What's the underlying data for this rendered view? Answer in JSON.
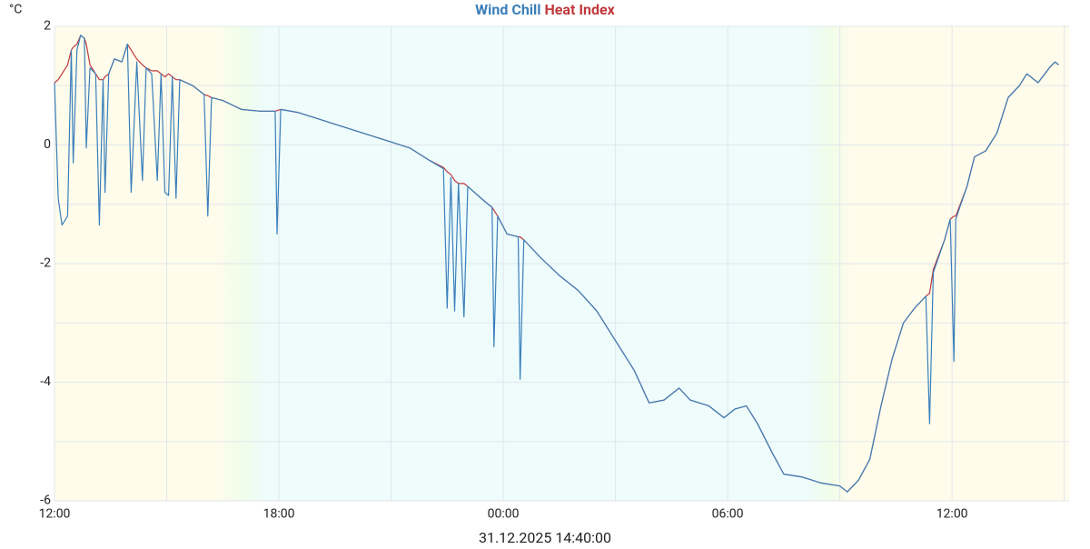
{
  "chart_data": {
    "type": "line",
    "ylabel": "°C",
    "xlabel": "31.12.2025 14:40:00",
    "x": [
      12.0,
      12.1,
      12.2,
      12.35,
      12.45,
      12.5,
      12.6,
      12.7,
      12.8,
      12.85,
      12.95,
      13.1,
      13.2,
      13.3,
      13.35,
      13.45,
      13.6,
      13.8,
      13.95,
      14.05,
      14.2,
      14.35,
      14.45,
      14.6,
      14.75,
      14.85,
      14.95,
      15.05,
      15.15,
      15.25,
      15.35,
      15.7,
      16.0,
      16.1,
      16.2,
      16.5,
      17.0,
      17.5,
      17.9,
      17.95,
      18.05,
      18.5,
      19.0,
      19.5,
      20.0,
      20.5,
      21.0,
      21.5,
      22.0,
      22.4,
      22.5,
      22.6,
      22.7,
      22.8,
      22.95,
      23.05,
      23.5,
      23.7,
      23.75,
      23.85,
      24.1,
      24.4,
      24.45,
      24.55,
      25.0,
      25.5,
      26.0,
      26.5,
      27.0,
      27.5,
      27.9,
      28.3,
      28.7,
      29.0,
      29.5,
      29.9,
      30.2,
      30.5,
      30.8,
      31.2,
      31.5,
      32.0,
      32.5,
      33.0,
      33.2,
      33.5,
      33.8,
      34.1,
      34.4,
      34.7,
      35.0,
      35.3,
      35.4,
      35.5,
      35.8,
      35.95,
      36.05,
      36.1,
      36.4,
      36.6,
      36.9,
      37.2,
      37.5,
      37.8,
      38.0,
      38.3,
      38.6,
      38.75,
      38.85
    ],
    "series": [
      {
        "name": "Heat Index",
        "color": "#c0393b",
        "values": [
          1.05,
          1.1,
          1.2,
          1.35,
          1.6,
          1.65,
          1.7,
          1.85,
          1.8,
          1.7,
          1.35,
          1.2,
          1.1,
          1.1,
          1.15,
          1.2,
          1.45,
          1.4,
          1.7,
          1.6,
          1.45,
          1.35,
          1.3,
          1.25,
          1.25,
          1.2,
          1.15,
          1.2,
          1.15,
          1.1,
          1.1,
          1.0,
          0.85,
          0.83,
          0.8,
          0.75,
          0.6,
          0.57,
          0.57,
          0.58,
          0.6,
          0.55,
          0.45,
          0.35,
          0.25,
          0.15,
          0.05,
          -0.05,
          -0.25,
          -0.38,
          -0.45,
          -0.5,
          -0.6,
          -0.65,
          -0.65,
          -0.7,
          -0.95,
          -1.05,
          -1.1,
          -1.2,
          -1.5,
          -1.55,
          -1.55,
          -1.6,
          -1.9,
          -2.2,
          -2.45,
          -2.8,
          -3.3,
          -3.8,
          -4.35,
          -4.3,
          -4.1,
          -4.3,
          -4.4,
          -4.6,
          -4.45,
          -4.4,
          -4.7,
          -5.2,
          -5.55,
          -5.6,
          -5.7,
          -5.75,
          -5.85,
          -5.65,
          -5.3,
          -4.4,
          -3.6,
          -3.0,
          -2.75,
          -2.55,
          -2.5,
          -2.1,
          -1.6,
          -1.25,
          -1.2,
          -1.2,
          -0.7,
          -0.2,
          -0.1,
          0.2,
          0.8,
          1.0,
          1.2,
          1.05,
          1.3,
          1.4,
          1.35
        ]
      },
      {
        "name": "Wind Chill",
        "color": "#3a7fba",
        "values": [
          1.05,
          -0.9,
          -1.35,
          -1.2,
          1.6,
          -0.3,
          1.6,
          1.85,
          1.8,
          -0.05,
          1.3,
          1.2,
          -1.35,
          1.1,
          -0.8,
          1.2,
          1.45,
          1.4,
          1.7,
          -0.8,
          1.4,
          -0.6,
          1.3,
          1.2,
          -0.6,
          1.2,
          -0.8,
          -0.85,
          1.15,
          -0.9,
          1.1,
          1.0,
          0.85,
          -1.2,
          0.8,
          0.75,
          0.6,
          0.57,
          0.57,
          -1.5,
          0.6,
          0.55,
          0.45,
          0.35,
          0.25,
          0.15,
          0.05,
          -0.05,
          -0.25,
          -0.4,
          -2.75,
          -0.55,
          -2.8,
          -0.65,
          -2.9,
          -0.7,
          -0.95,
          -1.05,
          -3.4,
          -1.2,
          -1.5,
          -1.55,
          -3.95,
          -1.6,
          -1.9,
          -2.2,
          -2.45,
          -2.8,
          -3.3,
          -3.8,
          -4.35,
          -4.3,
          -4.1,
          -4.3,
          -4.4,
          -4.6,
          -4.45,
          -4.4,
          -4.7,
          -5.2,
          -5.55,
          -5.6,
          -5.7,
          -5.75,
          -5.85,
          -5.65,
          -5.3,
          -4.4,
          -3.6,
          -3.0,
          -2.75,
          -2.55,
          -4.7,
          -2.15,
          -1.6,
          -1.25,
          -3.65,
          -1.25,
          -0.7,
          -0.2,
          -0.1,
          0.2,
          0.8,
          1.0,
          1.2,
          1.05,
          1.3,
          1.4,
          1.35
        ]
      }
    ],
    "xlim": [
      12,
      39.13
    ],
    "xticks": [
      {
        "value": 12,
        "label": "12:00"
      },
      {
        "value": 18,
        "label": "18:00"
      },
      {
        "value": 24,
        "label": "00:00"
      },
      {
        "value": 30,
        "label": "06:00"
      },
      {
        "value": 36,
        "label": "12:00"
      }
    ],
    "xgrid": [
      12,
      15,
      18,
      21,
      24,
      27,
      30,
      33,
      36,
      39
    ],
    "ylim": [
      -6,
      2
    ],
    "yticks": [
      -6,
      -4,
      -2,
      0,
      2
    ],
    "ygrid": [
      -6,
      -5,
      -4,
      -3,
      -2,
      -1,
      0,
      1,
      2
    ],
    "grid": true
  }
}
